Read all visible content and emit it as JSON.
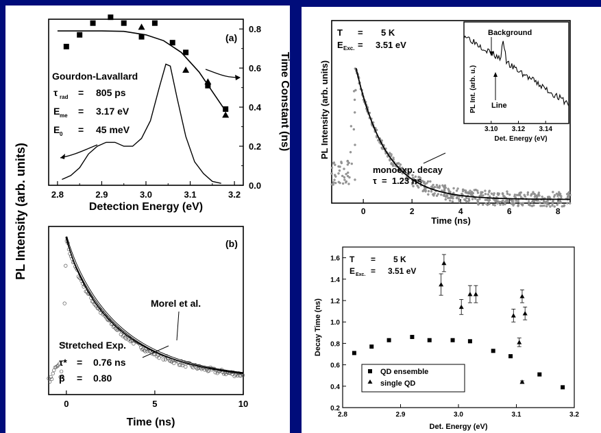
{
  "figure": {
    "shared_ylabel": "PL Intensity (arb. units)"
  },
  "chart_data": [
    {
      "id": "a",
      "type": "line",
      "panel_label": "(a)",
      "xlabel": "Detection Energy (eV)",
      "ylabel_right": "Time Constant (ns)",
      "xlim": [
        2.78,
        3.22
      ],
      "ylim_right": [
        0.0,
        0.85
      ],
      "x_ticks": [
        "2.8",
        "2.9",
        "3.0",
        "3.1",
        "3.2"
      ],
      "y_ticks_right": [
        "0.0",
        "0.2",
        "0.4",
        "0.6",
        "0.8"
      ],
      "annotations": {
        "model": "Gourdon-Lavallard",
        "params": [
          {
            "sym": "τ",
            "sub": "rad",
            "eq": "=",
            "val": "805 ps"
          },
          {
            "sym": "E",
            "sub": "me",
            "eq": "=",
            "val": "3.17 eV"
          },
          {
            "sym": "E",
            "sub": "0",
            "eq": "=",
            "val": "45 meV"
          }
        ]
      },
      "series": [
        {
          "marker": "square",
          "points": [
            [
              2.82,
              0.71
            ],
            [
              2.85,
              0.77
            ],
            [
              2.88,
              0.83
            ],
            [
              2.92,
              0.86
            ],
            [
              2.95,
              0.83
            ],
            [
              2.99,
              0.76
            ],
            [
              3.02,
              0.83
            ],
            [
              3.06,
              0.73
            ],
            [
              3.09,
              0.68
            ],
            [
              3.14,
              0.51
            ],
            [
              3.18,
              0.39
            ]
          ]
        },
        {
          "marker": "triangle",
          "points": [
            [
              2.99,
              0.81
            ],
            [
              3.09,
              0.59
            ],
            [
              3.14,
              0.53
            ],
            [
              3.18,
              0.36
            ]
          ]
        },
        {
          "kind": "fit",
          "points": [
            [
              2.8,
              0.79
            ],
            [
              2.9,
              0.79
            ],
            [
              2.95,
              0.788
            ],
            [
              3.0,
              0.77
            ],
            [
              3.04,
              0.74
            ],
            [
              3.08,
              0.68
            ],
            [
              3.12,
              0.58
            ],
            [
              3.15,
              0.48
            ],
            [
              3.18,
              0.38
            ]
          ]
        },
        {
          "kind": "spectrum",
          "points": [
            [
              2.81,
              0.03
            ],
            [
              2.83,
              0.05
            ],
            [
              2.85,
              0.09
            ],
            [
              2.87,
              0.16
            ],
            [
              2.89,
              0.2
            ],
            [
              2.91,
              0.22
            ],
            [
              2.93,
              0.22
            ],
            [
              2.95,
              0.2
            ],
            [
              2.97,
              0.2
            ],
            [
              2.99,
              0.24
            ],
            [
              3.01,
              0.33
            ],
            [
              3.03,
              0.5
            ],
            [
              3.045,
              0.62
            ],
            [
              3.055,
              0.61
            ],
            [
              3.07,
              0.45
            ],
            [
              3.09,
              0.25
            ],
            [
              3.11,
              0.12
            ],
            [
              3.13,
              0.06
            ],
            [
              3.15,
              0.02
            ],
            [
              3.17,
              0.01
            ]
          ]
        }
      ]
    },
    {
      "id": "b",
      "type": "scatter",
      "panel_label": "(b)",
      "xlabel": "Time (ns)",
      "xlim": [
        -1,
        10
      ],
      "ylim": [
        0,
        1
      ],
      "x_ticks": [
        "0",
        "5",
        "10"
      ],
      "annotations": {
        "fit1": "Morel et al.",
        "fit2": "Stretched Exp.",
        "params": [
          {
            "sym": "τ*",
            "eq": "=",
            "val": "0.76 ns"
          },
          {
            "sym": "β",
            "eq": "=",
            "val": "0.80"
          }
        ]
      }
    },
    {
      "id": "c",
      "type": "scatter",
      "xlabel": "Time (ns)",
      "ylabel": "PL Intensity (arb. units)",
      "xlim": [
        -1.3,
        8.5
      ],
      "x_ticks": [
        "0",
        "2",
        "4",
        "6",
        "8"
      ],
      "annotations": {
        "T_label": "T",
        "T_eq": "=",
        "T_val": "5 K",
        "E_label": "E",
        "E_sub": "Exc.",
        "E_eq": "=",
        "E_val": "3.51 eV",
        "fit_line1": "monoexp. decay",
        "fit_line2": "τ  =  1.23 ns"
      }
    },
    {
      "id": "c-inset",
      "type": "line",
      "xlabel": "Det. Energy (eV)",
      "ylabel": "PL Int. (arb. u.)",
      "xlim": [
        3.08,
        3.157
      ],
      "x_ticks": [
        "3.10",
        "3.12",
        "3.14"
      ],
      "annotations": {
        "background": "Background",
        "line": "Line"
      }
    },
    {
      "id": "d",
      "type": "scatter",
      "xlabel": "Det. Energy (eV)",
      "ylabel": "Decay Time (ns)",
      "xlim": [
        2.8,
        3.2
      ],
      "ylim": [
        0.2,
        1.7
      ],
      "x_ticks": [
        "2.8",
        "2.9",
        "3.0",
        "3.1",
        "3.2"
      ],
      "y_ticks": [
        "0.2",
        "0.4",
        "0.6",
        "0.8",
        "1.0",
        "1.2",
        "1.4",
        "1.6"
      ],
      "annotations": {
        "T_label": "T",
        "T_eq": "=",
        "T_val": "5 K",
        "E_label": "E",
        "E_sub": "Exc.",
        "E_eq": "=",
        "E_val": "3.51 eV"
      },
      "series": [
        {
          "name": "QD ensemble",
          "marker": "square",
          "points": [
            [
              2.82,
              0.71
            ],
            [
              2.85,
              0.77
            ],
            [
              2.88,
              0.83
            ],
            [
              2.92,
              0.86
            ],
            [
              2.95,
              0.83
            ],
            [
              2.99,
              0.83
            ],
            [
              3.02,
              0.82
            ],
            [
              3.06,
              0.73
            ],
            [
              3.09,
              0.68
            ],
            [
              3.14,
              0.51
            ],
            [
              3.18,
              0.39
            ]
          ]
        },
        {
          "name": "single QD",
          "marker": "triangle",
          "points": [
            [
              2.97,
              1.35
            ],
            [
              2.975,
              1.55
            ],
            [
              3.005,
              1.14
            ],
            [
              3.02,
              1.26
            ],
            [
              3.03,
              1.26
            ],
            [
              3.095,
              1.06
            ],
            [
              3.105,
              0.81
            ],
            [
              3.11,
              1.24
            ],
            [
              3.11,
              0.44
            ],
            [
              3.115,
              1.08
            ]
          ],
          "errors": [
            0.1,
            0.08,
            0.07,
            0.08,
            0.08,
            0.06,
            0.04,
            0.06,
            0.01,
            0.06
          ]
        }
      ]
    }
  ]
}
